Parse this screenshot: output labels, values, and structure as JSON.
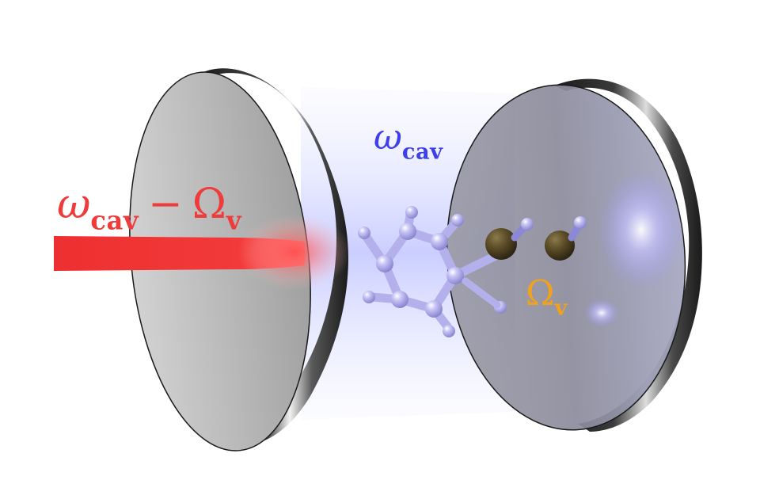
{
  "labels": {
    "pump": {
      "omega": "ω",
      "cav_subscript": "cav",
      "minus": "−",
      "Omega": "Ω",
      "v_subscript": "v"
    },
    "cavity": {
      "omega": "ω",
      "cav_subscript": "cav"
    },
    "vibration": {
      "Omega": "Ω",
      "v_subscript": "v"
    }
  },
  "colors": {
    "pump_label": "#ee3b3b",
    "cavity_label": "#3d3fe8",
    "vibration_label": "#f0a21f",
    "laser_beam": "#ee2f2f",
    "cavity_light": "#aab0ff",
    "mirror_face": "#b0b0b0",
    "mirror_rim": "#2a2a2a",
    "molecule_atoms": "#b9b6f2",
    "cn_atoms": "#5a4a26"
  }
}
